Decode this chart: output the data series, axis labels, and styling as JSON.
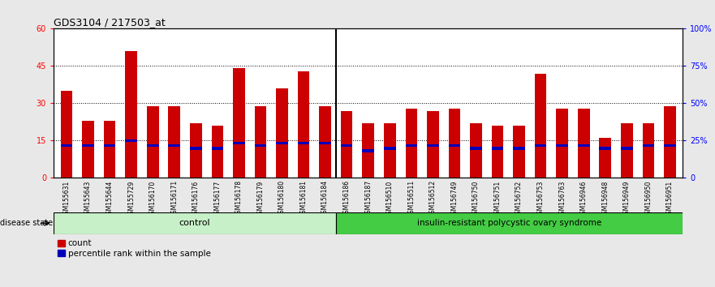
{
  "title": "GDS3104 / 217503_at",
  "samples": [
    "GSM155631",
    "GSM155643",
    "GSM155644",
    "GSM155729",
    "GSM156170",
    "GSM156171",
    "GSM156176",
    "GSM156177",
    "GSM156178",
    "GSM156179",
    "GSM156180",
    "GSM156181",
    "GSM156184",
    "GSM156186",
    "GSM156187",
    "GSM156510",
    "GSM156511",
    "GSM156512",
    "GSM156749",
    "GSM156750",
    "GSM156751",
    "GSM156752",
    "GSM156753",
    "GSM156763",
    "GSM156946",
    "GSM156948",
    "GSM156949",
    "GSM156950",
    "GSM156951"
  ],
  "counts": [
    35,
    23,
    23,
    51,
    29,
    29,
    22,
    21,
    44,
    29,
    36,
    43,
    29,
    27,
    22,
    22,
    28,
    27,
    28,
    22,
    21,
    21,
    42,
    28,
    28,
    16,
    22,
    22,
    29
  ],
  "percentile_marks": [
    13,
    13,
    13,
    15,
    13,
    13,
    12,
    12,
    14,
    13,
    14,
    14,
    14,
    13,
    11,
    12,
    13,
    13,
    13,
    12,
    12,
    12,
    13,
    13,
    13,
    12,
    12,
    13,
    13
  ],
  "control_count": 13,
  "disease_count": 16,
  "left_label": "control",
  "right_label": "insulin-resistant polycystic ovary syndrome",
  "bar_color": "#cc0000",
  "percentile_color": "#0000bb",
  "ylim_left": [
    0,
    60
  ],
  "ylim_right": [
    0,
    100
  ],
  "yticks_left": [
    0,
    15,
    30,
    45,
    60
  ],
  "yticks_right": [
    0,
    25,
    50,
    75,
    100
  ],
  "ytick_labels_right": [
    "0",
    "25%",
    "50%",
    "75%",
    "100%"
  ],
  "grid_lines": [
    15,
    30,
    45
  ],
  "bg_color": "#e8e8e8",
  "plot_bg": "#ffffff",
  "legend_count_label": "count",
  "legend_pct_label": "percentile rank within the sample",
  "control_green": "#c8f0c8",
  "disease_green": "#44cc44"
}
